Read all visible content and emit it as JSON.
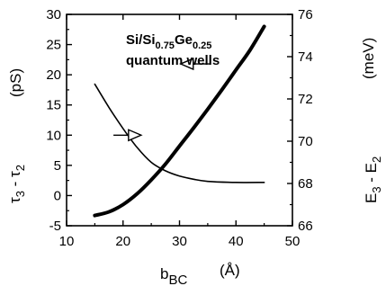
{
  "chart_data": {
    "type": "line",
    "annotation": {
      "line1_base": "Si/Si",
      "line1_sub1": "0.75",
      "line1_mid": "Ge",
      "line1_sub2": "0.25",
      "line2": "quantum wells"
    },
    "xlabel": {
      "main": "b",
      "sub": "BC",
      "unit": "(Å)"
    },
    "ylabel_left": {
      "t1": "τ",
      "s1": "3",
      "mid": " - ",
      "t2": "τ",
      "s2": "2",
      "unit": "(pS)"
    },
    "ylabel_right": {
      "t1": "E",
      "s1": "3",
      "mid": " - ",
      "t2": "E",
      "s2": "2",
      "unit": "(meV)"
    },
    "xlim": [
      10,
      50
    ],
    "ylim_left": [
      -5,
      30
    ],
    "ylim_right": [
      66,
      76
    ],
    "xticks": [
      10,
      20,
      30,
      40,
      50
    ],
    "yticks_left": [
      -5,
      0,
      5,
      10,
      15,
      20,
      25,
      30
    ],
    "yticks_right": [
      66,
      68,
      70,
      72,
      74,
      76
    ],
    "series": [
      {
        "axis": "right",
        "x": [
          15,
          17.5,
          20,
          22.5,
          25,
          27.5,
          30,
          32.5,
          35,
          40,
          45
        ],
        "y": [
          72.7,
          71.6,
          70.6,
          69.7,
          69.0,
          68.6,
          68.35,
          68.2,
          68.1,
          68.05,
          68.05
        ]
      },
      {
        "axis": "left",
        "x": [
          15,
          17.5,
          20,
          22.5,
          25,
          27.5,
          30,
          32.5,
          35,
          37.5,
          40,
          42.5,
          45
        ],
        "y": [
          -3.3,
          -2.7,
          -1.5,
          0.3,
          2.6,
          5.2,
          8.2,
          11.2,
          14.3,
          17.5,
          20.8,
          24.1,
          28.0
        ]
      }
    ],
    "arrows": [
      {
        "target": "right",
        "x1": 18.3,
        "x2": 23.2,
        "y_left": 10.0
      },
      {
        "target": "left",
        "x1": 35.5,
        "x2": 30.2,
        "y_left": 21.8
      }
    ]
  }
}
